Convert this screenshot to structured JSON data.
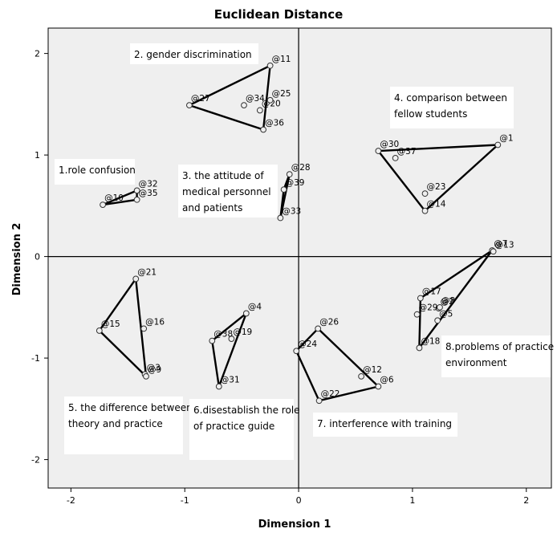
{
  "chart_data": {
    "type": "scatter",
    "title": "Euclidean Distance",
    "xlabel": "Dimension 1",
    "ylabel": "Dimension 2",
    "xlim": [
      -2.2,
      2.22
    ],
    "ylim": [
      -2.28,
      2.25
    ],
    "xticks": [
      -2,
      -1,
      0,
      1,
      2
    ],
    "yticks": [
      -2,
      -1,
      0,
      1,
      2
    ],
    "reference_lines": {
      "x": 0,
      "y": 0
    },
    "grid": false,
    "background": "#efefef",
    "points": [
      {
        "label": "@1",
        "x": 1.75,
        "y": 1.1
      },
      {
        "label": "@2",
        "x": 1.23,
        "y": -0.51
      },
      {
        "label": "@3",
        "x": -1.35,
        "y": -1.16
      },
      {
        "label": "@4",
        "x": -0.46,
        "y": -0.56
      },
      {
        "label": "@5",
        "x": 1.22,
        "y": -0.63
      },
      {
        "label": "@6",
        "x": 0.7,
        "y": -1.28
      },
      {
        "label": "@7",
        "x": 1.7,
        "y": 0.06
      },
      {
        "label": "@8",
        "x": 1.24,
        "y": -0.5
      },
      {
        "label": "@9",
        "x": -1.34,
        "y": -1.18
      },
      {
        "label": "@10",
        "x": -1.72,
        "y": 0.51
      },
      {
        "label": "@11",
        "x": -0.25,
        "y": 1.88
      },
      {
        "label": "@12",
        "x": 0.55,
        "y": -1.18
      },
      {
        "label": "@13",
        "x": 1.71,
        "y": 0.05
      },
      {
        "label": "@14",
        "x": 1.11,
        "y": 0.45
      },
      {
        "label": "@15",
        "x": -1.75,
        "y": -0.73
      },
      {
        "label": "@16",
        "x": -1.36,
        "y": -0.71
      },
      {
        "label": "@17",
        "x": 1.07,
        "y": -0.41
      },
      {
        "label": "@18",
        "x": 1.06,
        "y": -0.9
      },
      {
        "label": "@19",
        "x": -0.59,
        "y": -0.81
      },
      {
        "label": "@20",
        "x": -0.34,
        "y": 1.44
      },
      {
        "label": "@21",
        "x": -1.43,
        "y": -0.22
      },
      {
        "label": "@22",
        "x": 0.18,
        "y": -1.42
      },
      {
        "label": "@23",
        "x": 1.11,
        "y": 0.62
      },
      {
        "label": "@24",
        "x": -0.02,
        "y": -0.93
      },
      {
        "label": "@25",
        "x": -0.25,
        "y": 1.54
      },
      {
        "label": "@26",
        "x": 0.17,
        "y": -0.71
      },
      {
        "label": "@27",
        "x": -0.96,
        "y": 1.49
      },
      {
        "label": "@28",
        "x": -0.08,
        "y": 0.81
      },
      {
        "label": "@29",
        "x": 1.04,
        "y": -0.57
      },
      {
        "label": "@30",
        "x": 0.7,
        "y": 1.04
      },
      {
        "label": "@31",
        "x": -0.7,
        "y": -1.28
      },
      {
        "label": "@32",
        "x": -1.42,
        "y": 0.65
      },
      {
        "label": "@33",
        "x": -0.16,
        "y": 0.38
      },
      {
        "label": "@34",
        "x": -0.48,
        "y": 1.49
      },
      {
        "label": "@35",
        "x": -1.42,
        "y": 0.56
      },
      {
        "label": "@36",
        "x": -0.31,
        "y": 1.25
      },
      {
        "label": "@37",
        "x": 0.85,
        "y": 0.97
      },
      {
        "label": "@38",
        "x": -0.76,
        "y": -0.83
      },
      {
        "label": "@39",
        "x": -0.13,
        "y": 0.66
      }
    ],
    "clusters": [
      {
        "name": "1.role confusion",
        "hull": [
          "@10",
          "@32",
          "@35"
        ]
      },
      {
        "name": "2. gender discrimination",
        "hull": [
          "@27",
          "@11",
          "@36"
        ]
      },
      {
        "name": "3. the attitude of medical personnel and patients",
        "hull": [
          "@28",
          "@39",
          "@33"
        ]
      },
      {
        "name": "4. comparison between fellow students",
        "hull": [
          "@30",
          "@1",
          "@14"
        ]
      },
      {
        "name": "5. the difference between theory and practice",
        "hull": [
          "@21",
          "@15",
          "@9"
        ]
      },
      {
        "name": "6.disestablish the role of practice guide",
        "hull": [
          "@4",
          "@38",
          "@31"
        ]
      },
      {
        "name": "7. interference with training",
        "hull": [
          "@26",
          "@24",
          "@22",
          "@6"
        ]
      },
      {
        "name": "8.problems of practice environment",
        "hull": [
          "@7",
          "@17",
          "@18"
        ]
      }
    ],
    "annotations": [
      {
        "lines": [
          "1.role confusion"
        ]
      },
      {
        "lines": [
          "2. gender discrimination"
        ]
      },
      {
        "lines": [
          "3. the attitude of",
          "medical personnel",
          "and patients"
        ]
      },
      {
        "lines": [
          "4. comparison between",
          "fellow students"
        ]
      },
      {
        "lines": [
          "5. the difference between",
          "theory and practice"
        ]
      },
      {
        "lines": [
          "6.disestablish the role",
          "of practice guide"
        ]
      },
      {
        "lines": [
          "7. interference with training"
        ]
      },
      {
        "lines": [
          "8.problems of practice",
          "environment"
        ]
      }
    ]
  }
}
